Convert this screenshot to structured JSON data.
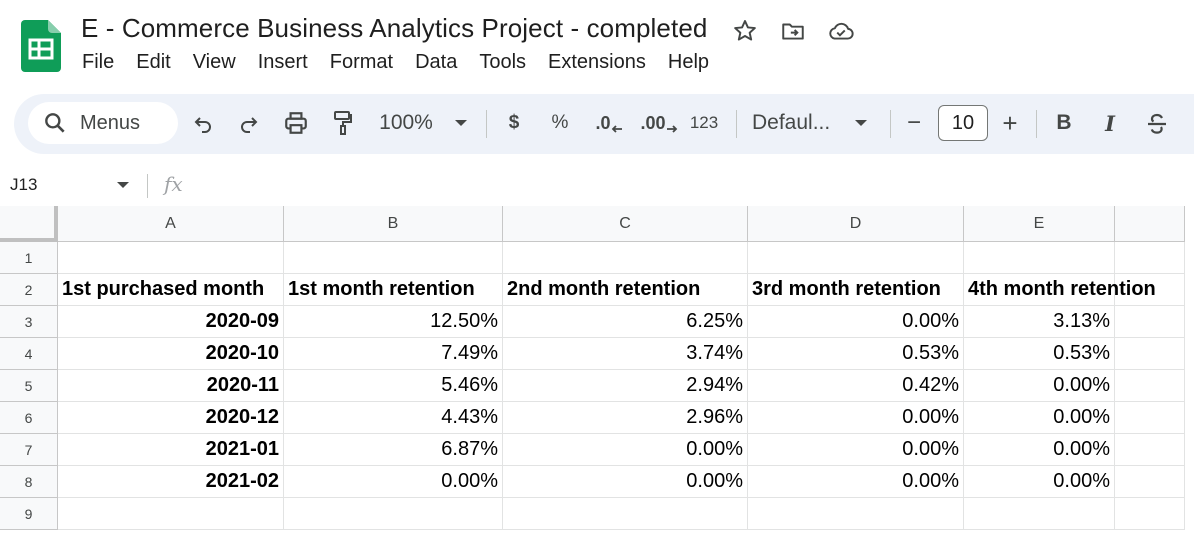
{
  "app": {
    "title": "E - Commerce Business Analytics Project - completed",
    "logo_icon": "google-sheets-logo",
    "brand_color": "#0f9d58"
  },
  "menubar": [
    "File",
    "Edit",
    "View",
    "Insert",
    "Format",
    "Data",
    "Tools",
    "Extensions",
    "Help"
  ],
  "toolbar": {
    "search_label": "Menus",
    "zoom": "100%",
    "currency": "$",
    "percent": "%",
    "decrease_decimal": ".0",
    "increase_decimal": ".00",
    "number_format": "123",
    "font": "Defaul...",
    "font_size": "10",
    "minus": "−",
    "plus": "+",
    "bold": "B",
    "italic": "I"
  },
  "formula_bar": {
    "cell_ref": "J13",
    "fx_label": "fx",
    "formula": ""
  },
  "sheet": {
    "columns": [
      "A",
      "B",
      "C",
      "D",
      "E"
    ],
    "rows": [
      "1",
      "2",
      "3",
      "4",
      "5",
      "6",
      "7",
      "8",
      "9"
    ],
    "headers": [
      "1st purchased month",
      "1st month retention",
      "2nd month retention",
      "3rd month retention",
      "4th month retention"
    ],
    "data": [
      [
        "2020-09",
        "12.50%",
        "6.25%",
        "0.00%",
        "3.13%"
      ],
      [
        "2020-10",
        "7.49%",
        "3.74%",
        "0.53%",
        "0.53%"
      ],
      [
        "2020-11",
        "5.46%",
        "2.94%",
        "0.42%",
        "0.00%"
      ],
      [
        "2020-12",
        "4.43%",
        "2.96%",
        "0.00%",
        "0.00%"
      ],
      [
        "2021-01",
        "6.87%",
        "0.00%",
        "0.00%",
        "0.00%"
      ],
      [
        "2021-02",
        "0.00%",
        "0.00%",
        "0.00%",
        "0.00%"
      ]
    ]
  }
}
